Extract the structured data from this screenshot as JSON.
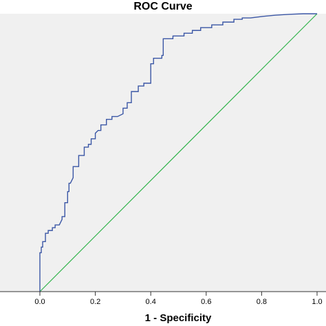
{
  "chart_data": {
    "type": "line",
    "title": "ROC Curve",
    "xlabel": "1 - Specificity",
    "ylabel": "",
    "xlim": [
      0,
      1
    ],
    "ylim": [
      0,
      1
    ],
    "x_ticks": [
      "0.0",
      "0.2",
      "0.4",
      "0.6",
      "0.8",
      "1.0"
    ],
    "grid": false,
    "colors": {
      "plot_background": "#f0f0f0",
      "roc_line": "#3a56a5",
      "reference_line": "#2fb34a",
      "axis": "#333333"
    },
    "series": [
      {
        "x": [
          0.0,
          0.0,
          0.005,
          0.005,
          0.01,
          0.01,
          0.02,
          0.02,
          0.03,
          0.03,
          0.045,
          0.045,
          0.055,
          0.055,
          0.07,
          0.08,
          0.08,
          0.09,
          0.09,
          0.1,
          0.1,
          0.105,
          0.105,
          0.11,
          0.12,
          0.12,
          0.14,
          0.14,
          0.16,
          0.16,
          0.175,
          0.175,
          0.185,
          0.185,
          0.2,
          0.2,
          0.21,
          0.22,
          0.22,
          0.24,
          0.24,
          0.26,
          0.26,
          0.28,
          0.3,
          0.3,
          0.315,
          0.315,
          0.33,
          0.33,
          0.355,
          0.355,
          0.375,
          0.375,
          0.4,
          0.4,
          0.41,
          0.41,
          0.44,
          0.44,
          0.445,
          0.445,
          0.48,
          0.48,
          0.52,
          0.52,
          0.55,
          0.55,
          0.58,
          0.58,
          0.62,
          0.62,
          0.66,
          0.66,
          0.7,
          0.7,
          0.73,
          0.73,
          0.76,
          0.8,
          0.8,
          0.85,
          0.85,
          0.9,
          0.9,
          0.95,
          0.95,
          1.0
        ],
        "y": [
          0.0,
          0.14,
          0.14,
          0.16,
          0.16,
          0.18,
          0.18,
          0.21,
          0.21,
          0.22,
          0.22,
          0.23,
          0.23,
          0.24,
          0.24,
          0.26,
          0.27,
          0.27,
          0.32,
          0.32,
          0.36,
          0.36,
          0.39,
          0.39,
          0.41,
          0.45,
          0.45,
          0.49,
          0.49,
          0.52,
          0.52,
          0.53,
          0.53,
          0.55,
          0.55,
          0.57,
          0.58,
          0.58,
          0.6,
          0.6,
          0.62,
          0.62,
          0.63,
          0.63,
          0.64,
          0.66,
          0.66,
          0.68,
          0.68,
          0.72,
          0.72,
          0.74,
          0.74,
          0.75,
          0.75,
          0.82,
          0.82,
          0.84,
          0.84,
          0.85,
          0.85,
          0.91,
          0.91,
          0.92,
          0.92,
          0.93,
          0.93,
          0.94,
          0.94,
          0.95,
          0.95,
          0.96,
          0.96,
          0.97,
          0.97,
          0.98,
          0.98,
          0.985,
          0.985,
          0.99,
          0.99,
          0.995,
          0.995,
          0.998,
          0.998,
          1.0,
          1.0,
          1.0
        ]
      },
      {
        "x": [
          0,
          1
        ],
        "y": [
          0,
          1
        ]
      }
    ]
  }
}
